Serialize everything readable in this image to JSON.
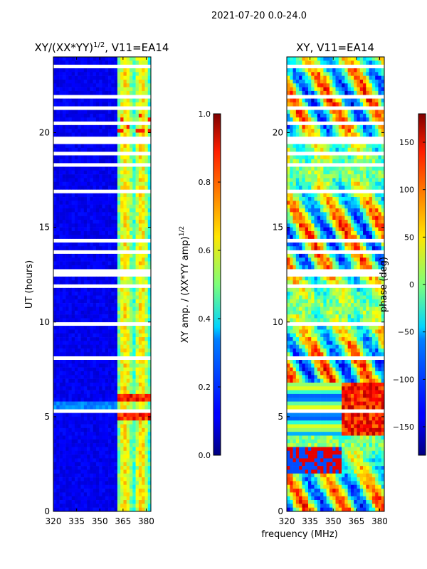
{
  "suptitle": "2021-07-20 0.0-24.0",
  "chart_data": [
    {
      "type": "heatmap",
      "title": "XY/(XX*YY)",
      "title_exponent": "1/2",
      "title_suffix": ", V11=EA14",
      "xlabel": "",
      "ylabel": "UT (hours)",
      "xlim": [
        320,
        383
      ],
      "ylim": [
        0,
        24
      ],
      "xticks": [
        320,
        335,
        350,
        365,
        380
      ],
      "yticks": [
        0,
        5,
        10,
        15,
        20
      ],
      "colorbar": {
        "label": "XY amp. / (XX*YY amp)",
        "label_exponent": "1/2",
        "range": [
          0.0,
          1.0
        ],
        "ticks": [
          "0.0",
          "0.2",
          "0.4",
          "0.6",
          "0.8",
          "1.0"
        ],
        "colormap": "jet"
      }
    },
    {
      "type": "heatmap",
      "title": "XY, V11=EA14",
      "xlabel": "frequency (MHz)",
      "ylabel": "",
      "xlim": [
        320,
        383
      ],
      "ylim": [
        0,
        24
      ],
      "xticks": [
        320,
        335,
        350,
        365,
        380
      ],
      "yticks": [
        0,
        5,
        10,
        15,
        20
      ],
      "colorbar": {
        "label": "phase (deg)",
        "range": [
          -180,
          180
        ],
        "ticks": [
          "150",
          "100",
          "50",
          "0",
          "−50",
          "−100",
          "−150"
        ],
        "colormap": "jet"
      }
    }
  ]
}
